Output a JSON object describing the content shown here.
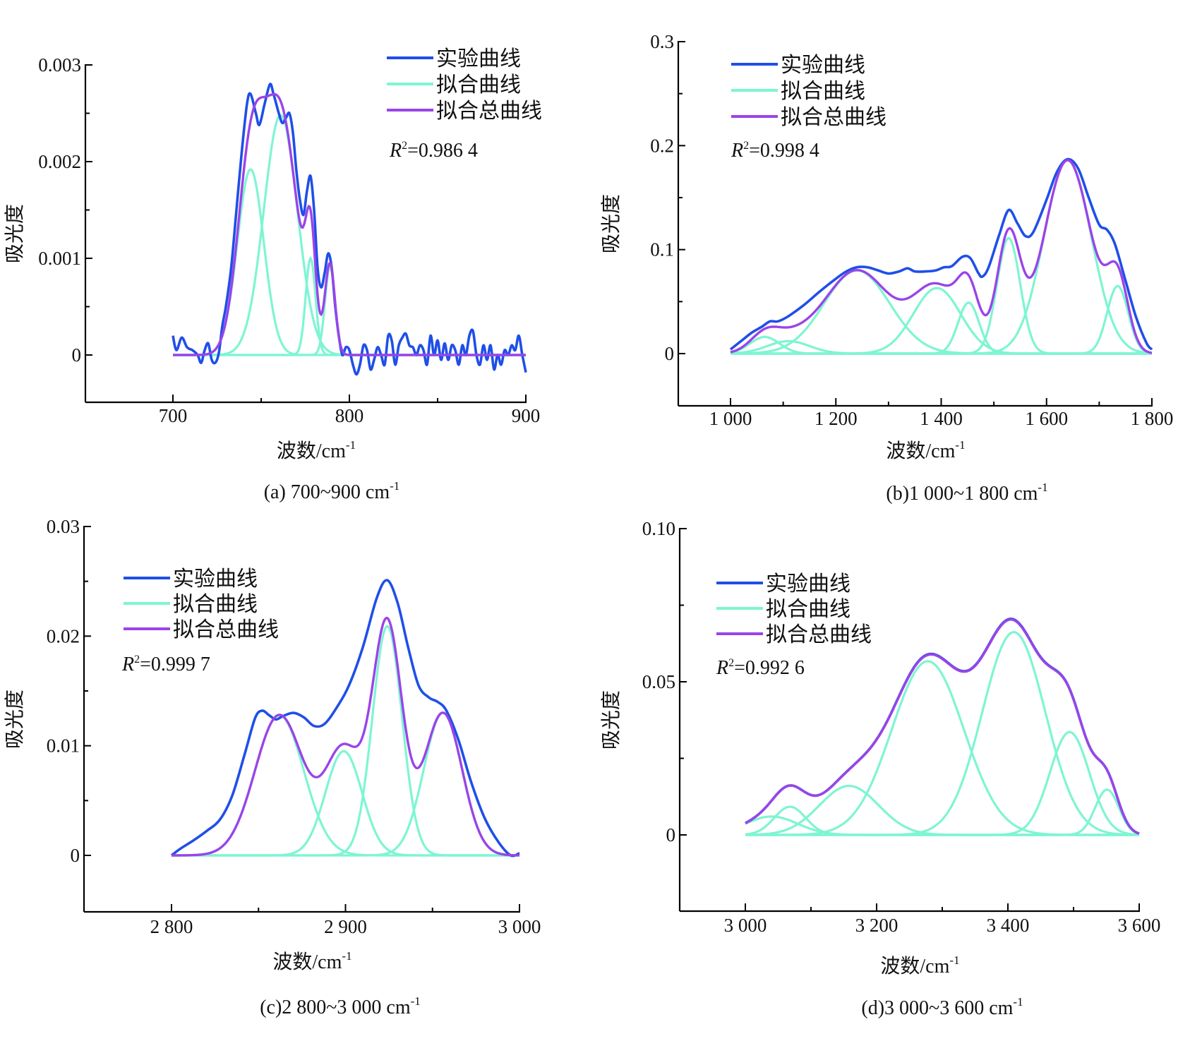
{
  "colors": {
    "experimental": "#1f4fe8",
    "fit": "#7ef5d2",
    "total": "#9a44e8",
    "axis": "#000000"
  },
  "chart_data": [
    {
      "id": "a",
      "type": "line",
      "caption": "(a) 700~900 cm",
      "caption_sup": "-1",
      "xlabel": "波数/cm",
      "xlabel_sup": "-1",
      "ylabel": "吸光度",
      "xlim": [
        650,
        900
      ],
      "ylim": [
        -0.0005,
        0.003
      ],
      "xticks": [
        700,
        800,
        900
      ],
      "xtick_labels": [
        "700",
        "800",
        "900"
      ],
      "xminor": [
        750,
        850
      ],
      "yticks": [
        0,
        0.001,
        0.002,
        0.003
      ],
      "ytick_labels": [
        "0",
        "0.001",
        "0.002",
        "0.003"
      ],
      "yminor": [
        0.0005,
        0.0015,
        0.0025
      ],
      "legend": [
        "实验曲线",
        "拟合曲线",
        "拟合总曲线"
      ],
      "legend_position": "top-right",
      "r2_label": "R",
      "r2_value": "=0.986 4",
      "x_range": [
        700,
        900
      ],
      "peaks": [
        {
          "center": 744,
          "height": 0.00192,
          "width": 7.5
        },
        {
          "center": 761,
          "height": 0.00248,
          "width": 9.5
        },
        {
          "center": 778,
          "height": 0.001,
          "width": 2.8
        },
        {
          "center": 789,
          "height": 0.00092,
          "width": 2.8
        }
      ],
      "experimental": [
        [
          700,
          0.0002
        ],
        [
          702,
          5e-05
        ],
        [
          705,
          0.00018
        ],
        [
          708,
          8e-05
        ],
        [
          711,
          5e-05
        ],
        [
          714,
          0.0
        ],
        [
          716,
          -8e-05
        ],
        [
          718,
          5e-05
        ],
        [
          720,
          0.00012
        ],
        [
          722,
          -5e-05
        ],
        [
          724,
          -8e-05
        ],
        [
          726,
          2e-05
        ],
        [
          728,
          0.0003
        ],
        [
          730,
          0.0005
        ],
        [
          733,
          0.0009
        ],
        [
          736,
          0.0015
        ],
        [
          739,
          0.0021
        ],
        [
          742,
          0.0026
        ],
        [
          744,
          0.0027
        ],
        [
          747,
          0.0025
        ],
        [
          749,
          0.00238
        ],
        [
          752,
          0.0026
        ],
        [
          755,
          0.0028
        ],
        [
          757,
          0.0027
        ],
        [
          760,
          0.0025
        ],
        [
          762,
          0.0024
        ],
        [
          764,
          0.00245
        ],
        [
          766,
          0.0025
        ],
        [
          768,
          0.0023
        ],
        [
          770,
          0.0019
        ],
        [
          772,
          0.0016
        ],
        [
          774,
          0.00145
        ],
        [
          776,
          0.0017
        ],
        [
          778,
          0.00185
        ],
        [
          780,
          0.0015
        ],
        [
          782,
          0.0009
        ],
        [
          784,
          0.0007
        ],
        [
          786,
          0.00085
        ],
        [
          788,
          0.00105
        ],
        [
          790,
          0.0009
        ],
        [
          792,
          0.0005
        ],
        [
          794,
          0.0002
        ],
        [
          796,
          0.0
        ],
        [
          798,
          8e-05
        ],
        [
          800,
          5e-05
        ],
        [
          802,
          -0.0001
        ],
        [
          804,
          -0.0002
        ],
        [
          806,
          -0.0001
        ],
        [
          808,
          0.0001
        ],
        [
          810,
          5e-05
        ],
        [
          812,
          -0.00015
        ],
        [
          814,
          -5e-05
        ],
        [
          816,
          8e-05
        ],
        [
          818,
          0.0
        ],
        [
          820,
          -0.0001
        ],
        [
          822,
          0.0002
        ],
        [
          824,
          0.00015
        ],
        [
          826,
          -0.0001
        ],
        [
          828,
          0.0001
        ],
        [
          830,
          0.00018
        ],
        [
          832,
          0.00022
        ],
        [
          834,
          0.0001
        ],
        [
          836,
          8e-05
        ],
        [
          838,
          0.0
        ],
        [
          840,
          0.0001
        ],
        [
          842,
          5e-05
        ],
        [
          844,
          -0.0001
        ],
        [
          846,
          0.0002
        ],
        [
          848,
          0.0
        ],
        [
          850,
          0.00015
        ],
        [
          852,
          -5e-05
        ],
        [
          854,
          0.00012
        ],
        [
          856,
          -5e-05
        ],
        [
          858,
          0.0001
        ],
        [
          860,
          5e-05
        ],
        [
          862,
          -0.0001
        ],
        [
          864,
          0.0001
        ],
        [
          866,
          0.0
        ],
        [
          868,
          0.0002
        ],
        [
          870,
          0.00025
        ],
        [
          872,
          0.0
        ],
        [
          874,
          -0.0001
        ],
        [
          876,
          0.0001
        ],
        [
          878,
          -5e-05
        ],
        [
          880,
          0.0001
        ],
        [
          882,
          -0.00015
        ],
        [
          884,
          0.0
        ],
        [
          886,
          -0.0001
        ],
        [
          888,
          5e-05
        ],
        [
          890,
          0.0
        ],
        [
          892,
          0.0001
        ],
        [
          894,
          5e-05
        ],
        [
          896,
          0.0002
        ],
        [
          898,
          0.0
        ],
        [
          900,
          -0.00018
        ]
      ]
    },
    {
      "id": "b",
      "type": "line",
      "caption": "(b)1 000~1 800 cm",
      "caption_sup": "-1",
      "xlabel": "波数/cm",
      "xlabel_sup": "-1",
      "ylabel": "吸光度",
      "xlim": [
        900,
        1800
      ],
      "ylim": [
        -0.05,
        0.3
      ],
      "xticks": [
        1000,
        1200,
        1400,
        1600,
        1800
      ],
      "xtick_labels": [
        "1 000",
        "1 200",
        "1 400",
        "1 600",
        "1 800"
      ],
      "xminor": [
        1100,
        1300,
        1500,
        1700
      ],
      "yticks": [
        0,
        0.1,
        0.2,
        0.3
      ],
      "ytick_labels": [
        "0",
        "0.1",
        "0.2",
        "0.3"
      ],
      "yminor": [
        0.05,
        0.15,
        0.25
      ],
      "legend": [
        "实验曲线",
        "拟合曲线",
        "拟合总曲线"
      ],
      "legend_position": "top-left",
      "r2_label": "R",
      "r2_value": "=0.998 4",
      "x_range": [
        1000,
        1800
      ],
      "peaks": [
        {
          "center": 1065,
          "height": 0.016,
          "width": 28
        },
        {
          "center": 1240,
          "height": 0.08,
          "width": 62
        },
        {
          "center": 1392,
          "height": 0.063,
          "width": 45
        },
        {
          "center": 1452,
          "height": 0.049,
          "width": 20
        },
        {
          "center": 1528,
          "height": 0.111,
          "width": 22
        },
        {
          "center": 1640,
          "height": 0.186,
          "width": 45
        },
        {
          "center": 1735,
          "height": 0.065,
          "width": 20
        },
        {
          "center": 1110,
          "height": 0.012,
          "width": 40
        }
      ],
      "experimental": [
        [
          1000,
          0.004
        ],
        [
          1020,
          0.012
        ],
        [
          1040,
          0.02
        ],
        [
          1060,
          0.026
        ],
        [
          1075,
          0.031
        ],
        [
          1090,
          0.031
        ],
        [
          1110,
          0.036
        ],
        [
          1140,
          0.047
        ],
        [
          1170,
          0.06
        ],
        [
          1200,
          0.072
        ],
        [
          1220,
          0.079
        ],
        [
          1240,
          0.083
        ],
        [
          1260,
          0.083
        ],
        [
          1280,
          0.08
        ],
        [
          1300,
          0.077
        ],
        [
          1320,
          0.079
        ],
        [
          1336,
          0.082
        ],
        [
          1350,
          0.079
        ],
        [
          1370,
          0.079
        ],
        [
          1390,
          0.08
        ],
        [
          1405,
          0.083
        ],
        [
          1420,
          0.084
        ],
        [
          1440,
          0.093
        ],
        [
          1455,
          0.092
        ],
        [
          1470,
          0.078
        ],
        [
          1478,
          0.074
        ],
        [
          1490,
          0.083
        ],
        [
          1510,
          0.114
        ],
        [
          1528,
          0.138
        ],
        [
          1545,
          0.125
        ],
        [
          1560,
          0.113
        ],
        [
          1575,
          0.117
        ],
        [
          1600,
          0.148
        ],
        [
          1620,
          0.175
        ],
        [
          1640,
          0.187
        ],
        [
          1660,
          0.178
        ],
        [
          1680,
          0.15
        ],
        [
          1700,
          0.124
        ],
        [
          1715,
          0.119
        ],
        [
          1730,
          0.105
        ],
        [
          1750,
          0.07
        ],
        [
          1770,
          0.035
        ],
        [
          1790,
          0.01
        ],
        [
          1800,
          0.004
        ]
      ]
    },
    {
      "id": "c",
      "type": "line",
      "caption": "(c)2 800~3 000 cm",
      "caption_sup": "-1",
      "xlabel": "波数/cm",
      "xlabel_sup": "-1",
      "ylabel": "吸光度",
      "xlim": [
        2750,
        3000
      ],
      "ylim": [
        -0.005,
        0.03
      ],
      "xticks": [
        2800,
        2900,
        3000
      ],
      "xtick_labels": [
        "2 800",
        "2 900",
        "3 000"
      ],
      "xminor": [
        2850,
        2950
      ],
      "yticks": [
        0,
        0.01,
        0.02,
        0.03
      ],
      "ytick_labels": [
        "0",
        "0.01",
        "0.02",
        "0.03"
      ],
      "yminor": [
        0.005,
        0.015,
        0.025
      ],
      "legend": [
        "实验曲线",
        "拟合曲线",
        "拟合总曲线"
      ],
      "legend_position": "top-left",
      "r2_label": "R",
      "r2_value": "=0.999 7",
      "x_range": [
        2800,
        3000
      ],
      "peaks": [
        {
          "center": 2862,
          "height": 0.0128,
          "width": 14
        },
        {
          "center": 2899,
          "height": 0.0095,
          "width": 10.5
        },
        {
          "center": 2924,
          "height": 0.0209,
          "width": 8.5
        },
        {
          "center": 2956,
          "height": 0.013,
          "width": 11
        }
      ],
      "experimental": [
        [
          2800,
          0.0
        ],
        [
          2805,
          0.0006
        ],
        [
          2812,
          0.0013
        ],
        [
          2820,
          0.0022
        ],
        [
          2828,
          0.0033
        ],
        [
          2835,
          0.0055
        ],
        [
          2842,
          0.0092
        ],
        [
          2848,
          0.0125
        ],
        [
          2852,
          0.0132
        ],
        [
          2856,
          0.0128
        ],
        [
          2860,
          0.0124
        ],
        [
          2864,
          0.0127
        ],
        [
          2870,
          0.013
        ],
        [
          2876,
          0.0126
        ],
        [
          2882,
          0.0118
        ],
        [
          2888,
          0.012
        ],
        [
          2895,
          0.0135
        ],
        [
          2902,
          0.0155
        ],
        [
          2910,
          0.019
        ],
        [
          2918,
          0.0235
        ],
        [
          2924,
          0.0251
        ],
        [
          2930,
          0.023
        ],
        [
          2936,
          0.019
        ],
        [
          2942,
          0.0155
        ],
        [
          2948,
          0.0144
        ],
        [
          2953,
          0.014
        ],
        [
          2958,
          0.0132
        ],
        [
          2965,
          0.0105
        ],
        [
          2972,
          0.0068
        ],
        [
          2980,
          0.0034
        ],
        [
          2988,
          0.0012
        ],
        [
          2995,
          0.0
        ],
        [
          3000,
          0.0002
        ]
      ]
    },
    {
      "id": "d",
      "type": "line",
      "caption": "(d)3 000~3 600 cm",
      "caption_sup": "-1",
      "xlabel": "波数/cm",
      "xlabel_sup": "-1",
      "ylabel": "吸光度",
      "xlim": [
        2900,
        3600
      ],
      "ylim": [
        -0.025,
        0.1
      ],
      "xticks": [
        3000,
        3200,
        3400,
        3600
      ],
      "xtick_labels": [
        "3 000",
        "3 200",
        "3 400",
        "3 600"
      ],
      "xminor": [
        3100,
        3300,
        3500
      ],
      "yticks": [
        0,
        0.05,
        0.1
      ],
      "ytick_labels": [
        "0",
        "0.05",
        "0.10"
      ],
      "yminor": [
        0.025,
        0.075
      ],
      "legend": [
        "实验曲线",
        "拟合曲线",
        "拟合总曲线"
      ],
      "legend_position": "top-left",
      "r2_label": "R",
      "r2_value": "=0.992 6",
      "x_range": [
        3000,
        3600
      ],
      "peaks": [
        {
          "center": 3068,
          "height": 0.0092,
          "width": 24
        },
        {
          "center": 3158,
          "height": 0.016,
          "width": 45
        },
        {
          "center": 3278,
          "height": 0.0567,
          "width": 55
        },
        {
          "center": 3409,
          "height": 0.0662,
          "width": 48
        },
        {
          "center": 3494,
          "height": 0.0336,
          "width": 30
        },
        {
          "center": 3551,
          "height": 0.0148,
          "width": 18
        },
        {
          "center": 3040,
          "height": 0.006,
          "width": 40
        }
      ],
      "experimental": null
    }
  ]
}
